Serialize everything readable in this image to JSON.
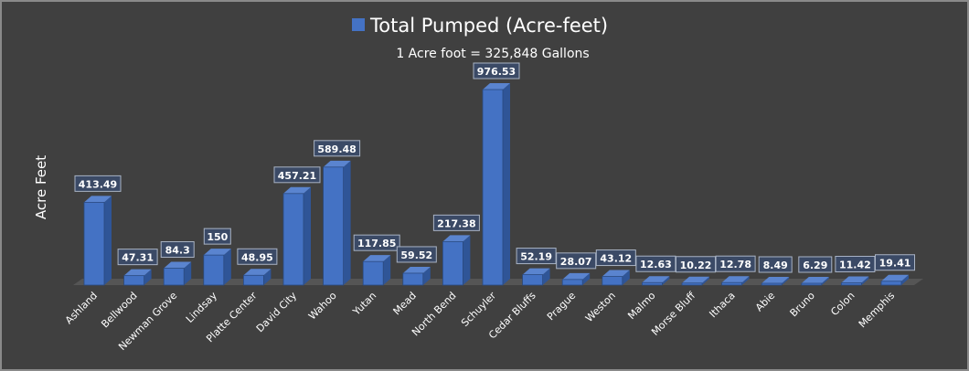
{
  "chart_data": {
    "type": "bar",
    "style": "3d-column",
    "title": "",
    "subtitle": "1 Acre foot = 325,848 Gallons",
    "ylabel": "Acre Feet",
    "xlabel": "",
    "legend": {
      "placement": "top",
      "entries": [
        "Total Pumped (Acre-feet)"
      ]
    },
    "grid": false,
    "ylim": [
      0,
      1000
    ],
    "categories": [
      "Ashland",
      "Bellwood",
      "Newman Grove",
      "Lindsay",
      "Platte Center",
      "David City",
      "Wahoo",
      "Yutan",
      "Mead",
      "North Bend",
      "Schuyler",
      "Cedar Bluffs",
      "Prague",
      "Weston",
      "Malmo",
      "Morse Bluff",
      "Ithaca",
      "Abie",
      "Bruno",
      "Colon",
      "Memphis"
    ],
    "series": [
      {
        "name": "Total Pumped (Acre-feet)",
        "values": [
          413.49,
          47.31,
          84.3,
          150,
          48.95,
          457.21,
          589.48,
          117.85,
          59.52,
          217.38,
          976.53,
          52.19,
          28.07,
          43.12,
          12.63,
          10.22,
          12.78,
          8.49,
          6.29,
          11.42,
          19.41
        ],
        "color": "#4472c4"
      }
    ],
    "data_labels": true
  },
  "colors": {
    "background": "#404040",
    "bar_front": "#4472c4",
    "bar_side": "#2f5597",
    "bar_top": "#5a84cf",
    "floor": "#555555",
    "text": "#ffffff",
    "label_box": "#3b4a66"
  }
}
